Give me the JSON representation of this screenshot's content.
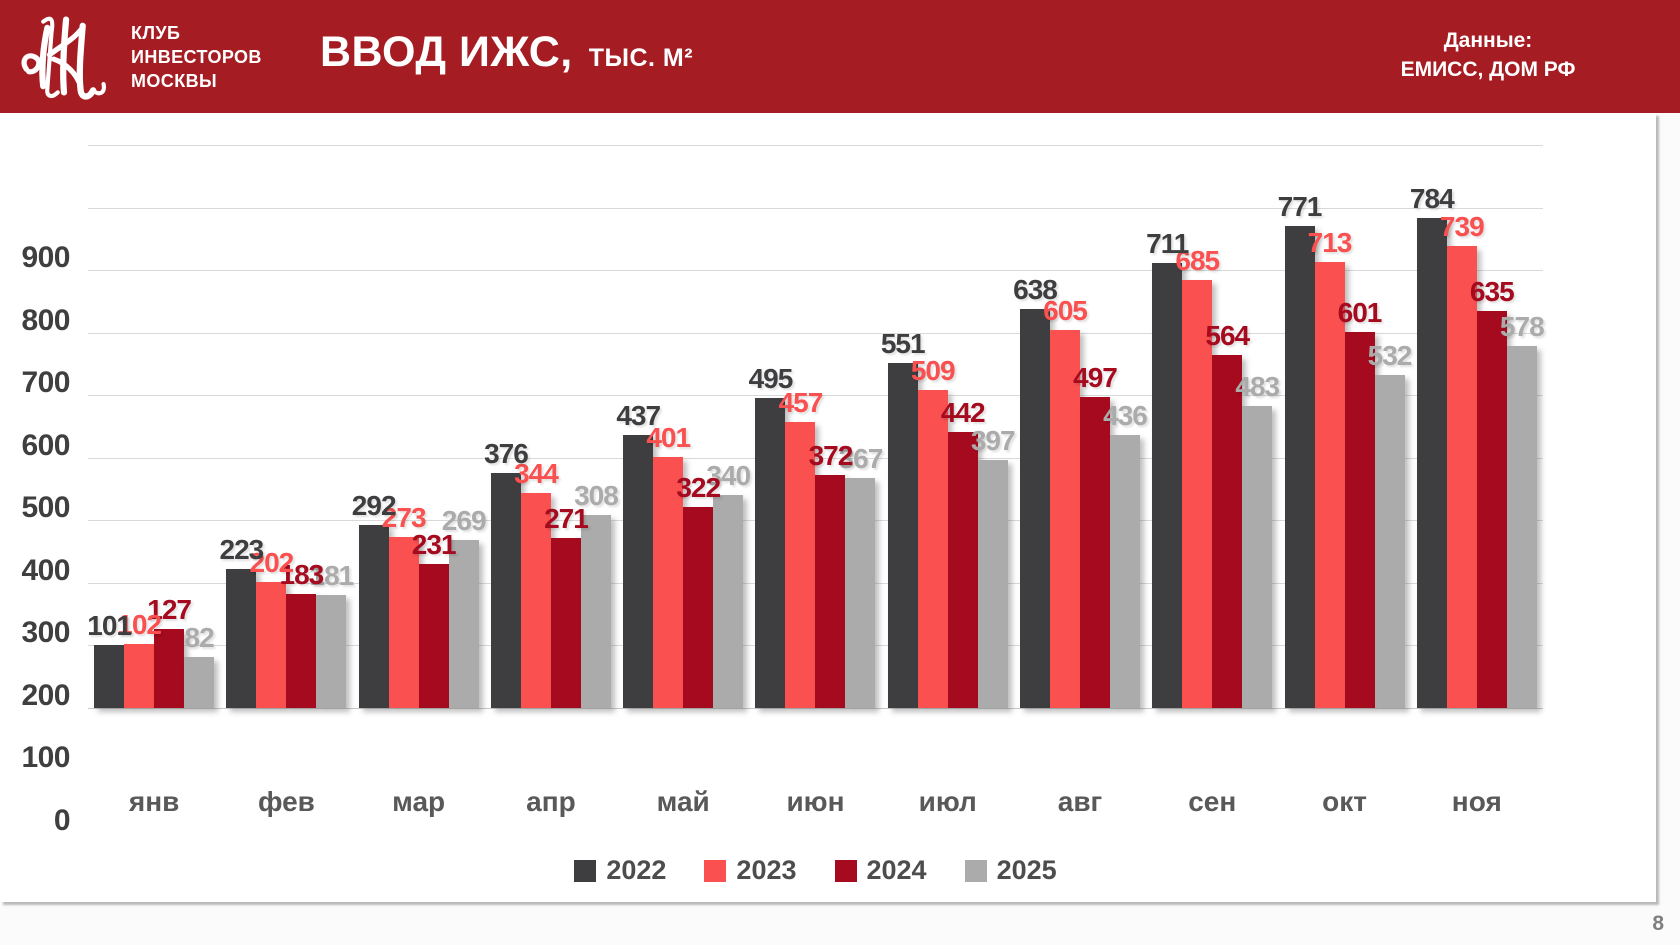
{
  "header": {
    "org_name": "КЛУБ\nИНВЕСТОРОВ\nМОСКВЫ",
    "title": "ВВОД ИЖС,",
    "title_unit": "ТЫС. М²",
    "source_line1": "Данные:",
    "source_line2": "ЕМИСС, ДОМ РФ",
    "bg_color": "#a51c22"
  },
  "page_number": "8",
  "chart_data": {
    "type": "bar",
    "title": "ВВОД ИЖС, тыс. м²",
    "categories": [
      "янв",
      "фев",
      "мар",
      "апр",
      "май",
      "июн",
      "июл",
      "авг",
      "сен",
      "окт",
      "ноя"
    ],
    "series": [
      {
        "name": "2022",
        "color": "#3e3e40",
        "values": [
          101,
          223,
          292,
          376,
          437,
          495,
          551,
          638,
          711,
          771,
          784
        ]
      },
      {
        "name": "2023",
        "color": "#fa5050",
        "values": [
          102,
          202,
          273,
          344,
          401,
          457,
          509,
          605,
          685,
          713,
          739
        ]
      },
      {
        "name": "2024",
        "color": "#a50a1e",
        "values": [
          127,
          183,
          231,
          271,
          322,
          372,
          442,
          497,
          564,
          601,
          635
        ]
      },
      {
        "name": "2025",
        "color": "#ababab",
        "values": [
          82,
          181,
          269,
          308,
          340,
          367,
          397,
          436,
          483,
          532,
          578
        ]
      }
    ],
    "ylim": [
      0,
      900
    ],
    "ytick_step": 100,
    "grid": true,
    "legend_position": "bottom",
    "xlabel": "",
    "ylabel": ""
  }
}
